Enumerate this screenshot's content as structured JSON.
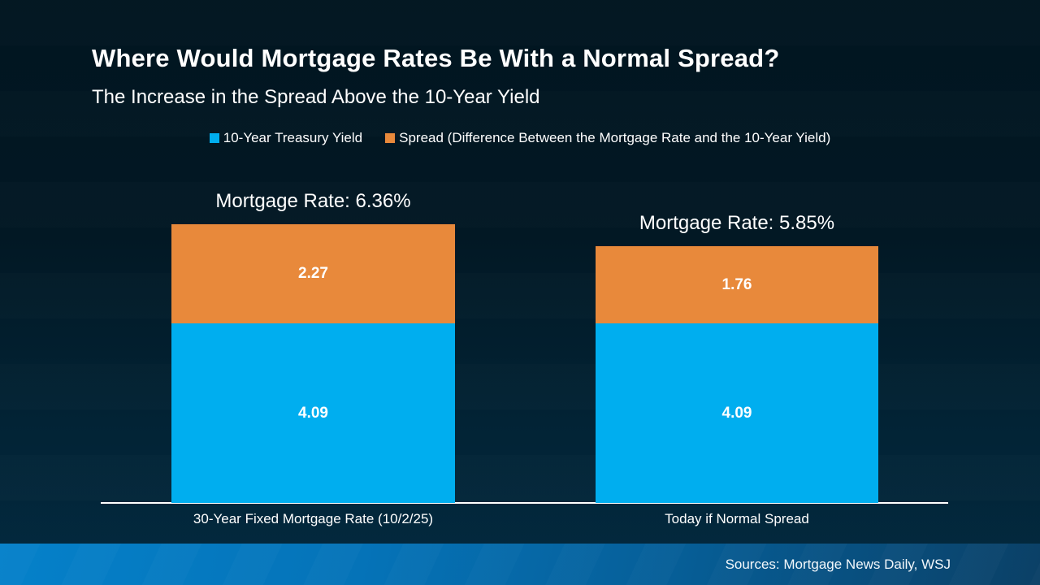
{
  "slide": {
    "title": "Where Would Mortgage Rates Be With a Normal Spread?",
    "subtitle": "The Increase in the Spread Above the 10-Year Yield",
    "footer": {
      "sources": "Sources: Mortgage News Daily, WSJ"
    }
  },
  "colors": {
    "treasury_blue": "#00AEEF",
    "spread_orange": "#E8893B",
    "background_top": "#011520",
    "background_bottom": "#032A40",
    "footer_gradient_left": "#0581CA",
    "footer_gradient_right": "#0B4066",
    "axis_line": "#FFFFFF",
    "text": "#FFFFFF"
  },
  "chart_data": {
    "type": "bar",
    "variant": "stacked",
    "title": "Where Would Mortgage Rates Be With a Normal Spread?",
    "subtitle": "The Increase in the Spread Above the 10-Year Yield",
    "categories": [
      "30-Year Fixed Mortgage Rate (10/2/25)",
      "Today if Normal Spread"
    ],
    "series": [
      {
        "name": "10-Year Treasury Yield",
        "color": "#00AEEF",
        "values": [
          4.09,
          4.09
        ]
      },
      {
        "name": "Spread (Difference Between the Mortgage Rate and the 10-Year Yield)",
        "color": "#E8893B",
        "values": [
          2.27,
          1.76
        ]
      }
    ],
    "bar_total_labels": [
      "Mortgage Rate: 6.36%",
      "Mortgage Rate: 5.85%"
    ],
    "totals": [
      6.36,
      5.85
    ],
    "ylim": [
      0,
      6.36
    ],
    "grid": false,
    "legend_position": "top-center",
    "value_labels": "inside-center",
    "xlabel": "",
    "ylabel": ""
  }
}
